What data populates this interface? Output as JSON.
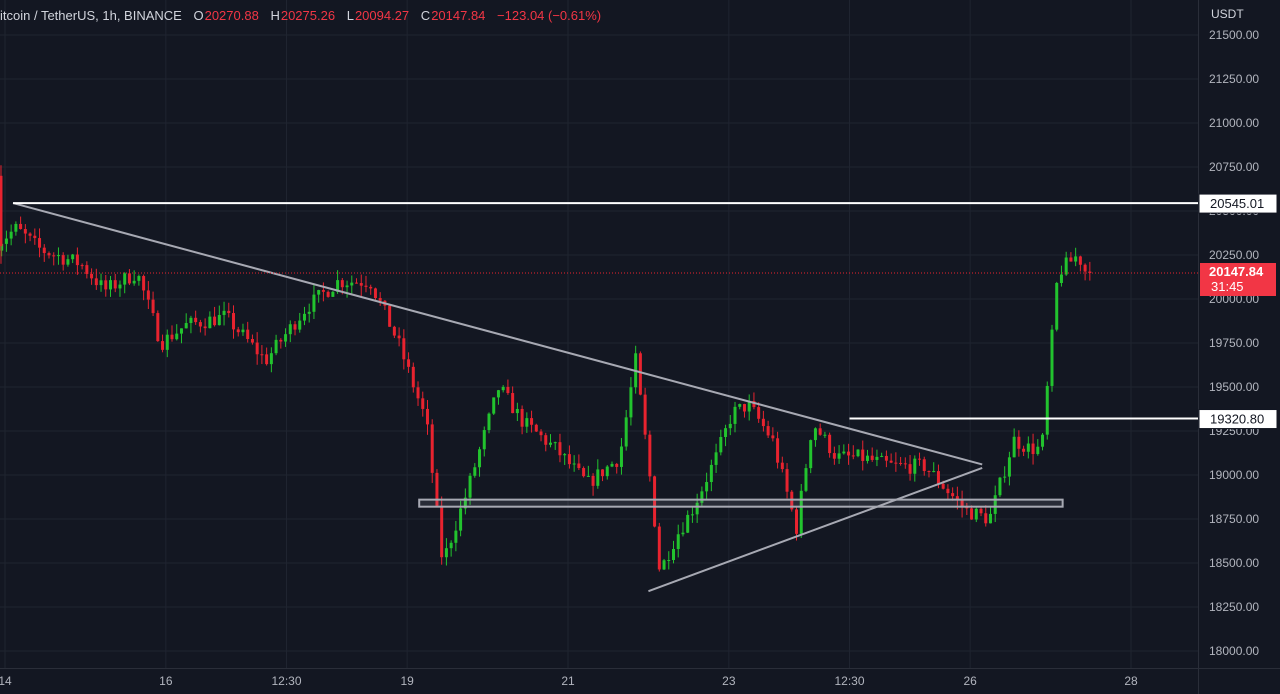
{
  "header": {
    "symbol": "itcoin / TetherUS, 1h, BINANCE",
    "o_label": "O",
    "o_value": "20270.88",
    "h_label": "H",
    "h_value": "20275.26",
    "l_label": "L",
    "l_value": "20094.27",
    "c_label": "C",
    "c_value": "20147.84",
    "change": "−123.04 (−0.61%)"
  },
  "price_axis": {
    "currency": "USDT"
  },
  "current": {
    "price_label": "20147.84",
    "countdown": "31:45"
  },
  "colors": {
    "bg": "#131722",
    "up": "#26a69a",
    "down": "#f23645",
    "grid": "#1f2430",
    "candle_up": "#22c32e",
    "candle_down": "#e8232f",
    "trendline": "#a7a9b3",
    "level": "#ffffff"
  },
  "chart_data": {
    "type": "candlestick",
    "title": "itcoin / TetherUS, 1h, BINANCE",
    "ylim": [
      17950,
      21650
    ],
    "y_ticks": [
      18000,
      18250,
      18500,
      18750,
      19000,
      19250,
      19500,
      19750,
      20000,
      20250,
      20500,
      20750,
      21000,
      21250,
      21500
    ],
    "y_tick_labels": [
      "18000.00",
      "18250.00",
      "18500.00",
      "18750.00",
      "19000.00",
      "19250.00",
      "19500.00",
      "19750.00",
      "20000.00",
      "20250.00",
      "20500.00",
      "20750.00",
      "21000.00",
      "21250.00",
      "21500.00"
    ],
    "x_tick_labels": [
      "14",
      "16",
      "12:30",
      "19",
      "21",
      "23",
      "12:30",
      "26",
      "28"
    ],
    "x_ticks_day": [
      14,
      16,
      17.5,
      19,
      21,
      23,
      24.5,
      26,
      28
    ],
    "x_range_day": [
      13.9,
      28.8
    ],
    "grid": true,
    "price_path_days": [
      13.9,
      14.2,
      14.5,
      15.0,
      15.3,
      15.7,
      16.0,
      16.3,
      16.8,
      17.3,
      17.8,
      18.2,
      18.6,
      18.95,
      19.3,
      19.5,
      19.8,
      20.2,
      20.5,
      20.9,
      21.3,
      21.7,
      21.9,
      22.1,
      22.2,
      22.4,
      22.6,
      22.9,
      23.1,
      23.3,
      23.6,
      23.9,
      24.1,
      24.4,
      24.7,
      25.1,
      25.5,
      25.8,
      26.0,
      26.3,
      26.6,
      26.8,
      26.95,
      27.15,
      27.4,
      27.5
    ],
    "price_path_values": [
      20300,
      20400,
      20280,
      20200,
      20050,
      20150,
      19750,
      19850,
      19900,
      19650,
      19950,
      20100,
      20100,
      19750,
      19300,
      18500,
      18900,
      19500,
      19300,
      19150,
      18950,
      19100,
      19650,
      18900,
      18450,
      18650,
      18800,
      19100,
      19350,
      19400,
      19200,
      18700,
      19300,
      19100,
      19100,
      19050,
      19050,
      18900,
      18800,
      18750,
      19200,
      19150,
      19150,
      20150,
      20250,
      20150
    ],
    "candles_per_day": 17,
    "high_water_mark_day": 13.95,
    "high_water_mark_value": 20760,
    "current_price": 20147.84,
    "horizontal_levels": [
      20545.01,
      19320.8
    ],
    "level_labels": [
      "20545.01",
      "19320.80"
    ],
    "level_start_days": [
      14.1,
      24.5
    ],
    "support_zone": {
      "from_day": 19.15,
      "to_day": 27.15,
      "low": 18820,
      "high": 18860
    },
    "trendlines": [
      {
        "from": [
          14.1,
          20545
        ],
        "to": [
          26.15,
          19060
        ]
      },
      {
        "from": [
          22.0,
          18340
        ],
        "to": [
          26.15,
          19040
        ]
      }
    ]
  }
}
